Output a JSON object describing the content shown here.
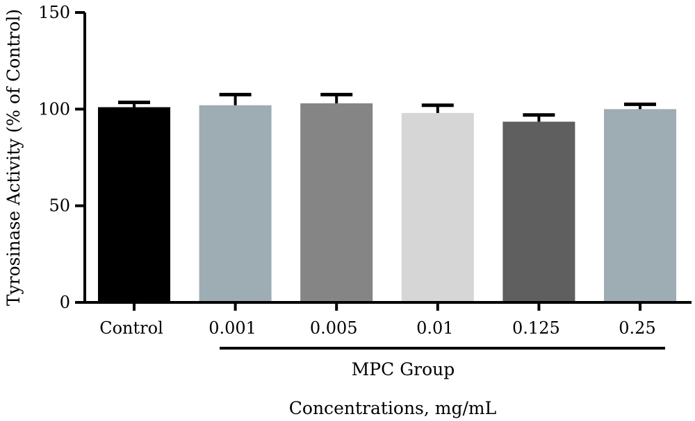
{
  "chart_data": {
    "type": "bar",
    "title": "",
    "ylabel": "Tyrosinase Activity (% of Control)",
    "xlabel": "Concentrations, mg/mL",
    "group_label": "MPC Group",
    "ylim": [
      0,
      150
    ],
    "yticks": [
      0,
      50,
      100,
      150
    ],
    "grid": false,
    "legend": "none",
    "categories": [
      "Control",
      "0.001",
      "0.005",
      "0.01",
      "0.125",
      "0.25"
    ],
    "values": [
      101,
      102,
      103,
      98,
      93.5,
      100
    ],
    "errors": [
      2.5,
      5.5,
      4.5,
      4,
      3.5,
      2.5
    ],
    "colors": [
      "#000000",
      "#9eacb4",
      "#858585",
      "#d6d6d6",
      "#5f5f5f",
      "#9eacb4"
    ],
    "group_members": [
      "0.001",
      "0.005",
      "0.01",
      "0.125",
      "0.25"
    ]
  }
}
